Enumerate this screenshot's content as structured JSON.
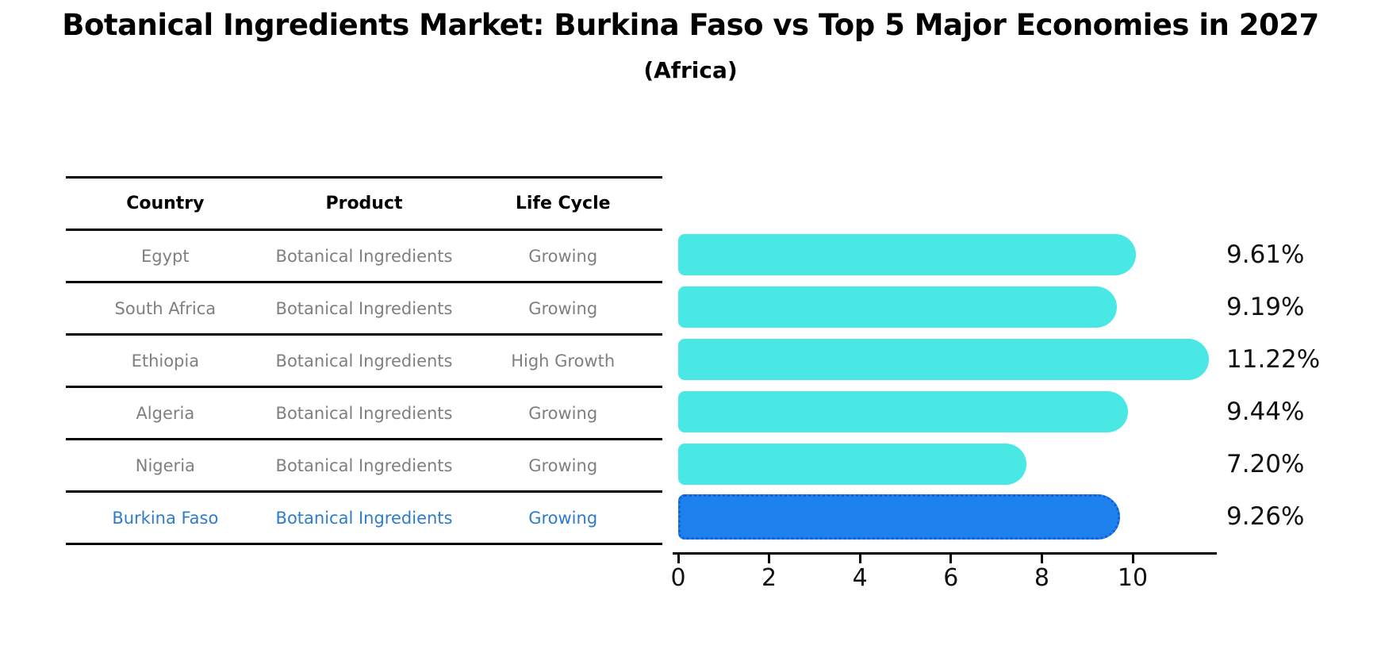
{
  "title": "Botanical Ingredients Market: Burkina Faso vs Top 5 Major Economies in 2027",
  "subtitle": "(Africa)",
  "table": {
    "headers": [
      "Country",
      "Product",
      "Life Cycle"
    ],
    "rows": [
      {
        "country": "Egypt",
        "product": "Botanical Ingredients",
        "life_cycle": "Growing",
        "highlighted": false
      },
      {
        "country": "South Africa",
        "product": "Botanical Ingredients",
        "life_cycle": "Growing",
        "highlighted": false
      },
      {
        "country": "Ethiopia",
        "product": "Botanical Ingredients",
        "life_cycle": "High Growth",
        "highlighted": false
      },
      {
        "country": "Algeria",
        "product": "Botanical Ingredients",
        "life_cycle": "Growing",
        "highlighted": false
      },
      {
        "country": "Nigeria",
        "product": "Botanical Ingredients",
        "life_cycle": "Growing",
        "highlighted": false
      },
      {
        "country": "Burkina Faso",
        "product": "Botanical Ingredients",
        "life_cycle": "Growing",
        "highlighted": true
      }
    ]
  },
  "chart_data": {
    "type": "bar",
    "orientation": "horizontal",
    "title": "Botanical Ingredients Market: Burkina Faso vs Top 5 Major Economies in 2027",
    "subtitle": "(Africa)",
    "categories": [
      "Egypt",
      "South Africa",
      "Ethiopia",
      "Algeria",
      "Nigeria",
      "Burkina Faso"
    ],
    "values": [
      9.61,
      9.19,
      11.22,
      9.44,
      7.2,
      9.26
    ],
    "value_labels": [
      "9.61%",
      "9.19%",
      "11.22%",
      "9.44%",
      "7.20%",
      "9.26%"
    ],
    "xlabel": "",
    "ylabel": "",
    "xlim": [
      0,
      11.8
    ],
    "xticks": [
      0,
      2,
      4,
      6,
      8,
      10
    ],
    "grid": false,
    "legend": false,
    "highlight_index": 5,
    "bar_color": "#49e8e5",
    "highlight_bar_color": "#1e82ee",
    "highlight_border_color": "#1560d0"
  },
  "colors": {
    "background": "#ffffff",
    "title_text": "#000000",
    "table_header_text": "#000000",
    "table_body_text": "#7f7f7f",
    "highlight_text": "#2e7cc9",
    "axis": "#000000",
    "value_label_text": "#111111"
  }
}
